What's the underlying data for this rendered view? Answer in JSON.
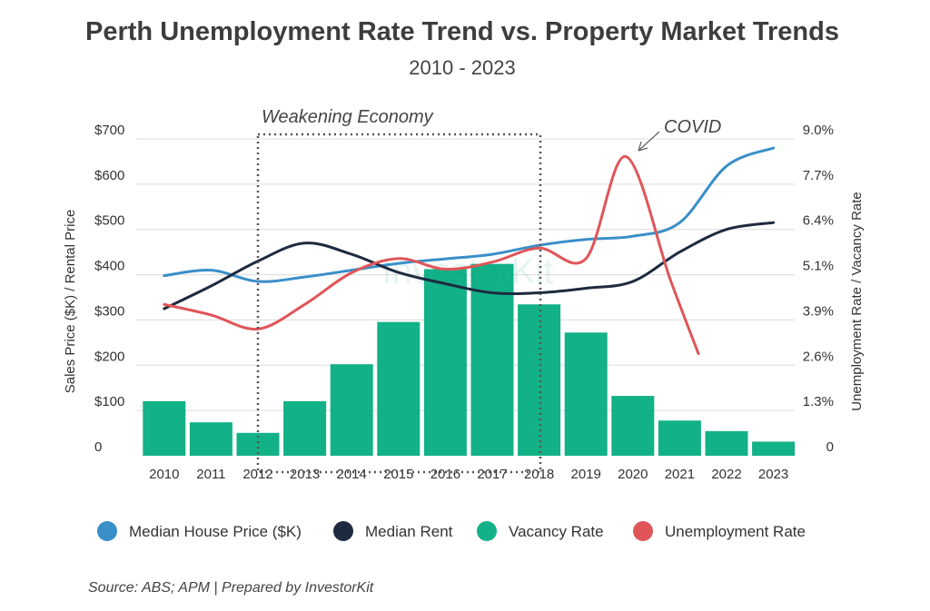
{
  "chart_data": {
    "type": "bar",
    "title": "Perth Unemployment Rate Trend vs. Property Market Trends",
    "subtitle": "2010 - 2023",
    "categories": [
      "2010",
      "2011",
      "2012",
      "2013",
      "2014",
      "2015",
      "2016",
      "2017",
      "2018",
      "2019",
      "2020",
      "2021",
      "2022",
      "2023"
    ],
    "ylabel_left": "Sales Price ($K) / Rental Price",
    "ylabel_right": "Unemployment Rate / Vacancy Rate",
    "ylim_left": [
      0,
      700
    ],
    "ylim_right": [
      0,
      9.0
    ],
    "left_ticks": [
      "0",
      "$100",
      "$200",
      "$300",
      "$400",
      "$500",
      "$600",
      "$700"
    ],
    "right_ticks": [
      "0",
      "1.3%",
      "2.6%",
      "3.9%",
      "5.1%",
      "6.4%",
      "7.7%",
      "9.0%"
    ],
    "series": [
      {
        "name": "Vacancy Rate",
        "kind": "bar",
        "axis": "right",
        "color": "#12b187",
        "values": [
          1.55,
          0.95,
          0.65,
          1.55,
          2.6,
          3.8,
          5.3,
          5.45,
          4.3,
          3.5,
          1.7,
          1.0,
          0.7,
          0.4
        ]
      },
      {
        "name": "Median House Price ($K)",
        "kind": "line",
        "axis": "left",
        "color": "#3a8fc8",
        "values": [
          398,
          410,
          385,
          395,
          410,
          425,
          435,
          445,
          465,
          478,
          485,
          515,
          640,
          680
        ]
      },
      {
        "name": "Median Rent",
        "kind": "line",
        "axis": "left",
        "color": "#1e2a3f",
        "values": [
          325,
          375,
          430,
          470,
          445,
          405,
          380,
          360,
          360,
          370,
          385,
          450,
          500,
          515
        ]
      },
      {
        "name": "Unemployment Rate",
        "kind": "line",
        "axis": "right",
        "color": "#e05558",
        "x": [
          2010,
          2011,
          2012,
          2013,
          2014,
          2015,
          2016,
          2017,
          2018,
          2019,
          2019.85,
          2020.8,
          2021.4
        ],
        "values": [
          4.3,
          4.0,
          3.6,
          4.3,
          5.2,
          5.6,
          5.3,
          5.5,
          5.9,
          5.6,
          8.5,
          5.0,
          2.9
        ]
      }
    ],
    "annotations": [
      {
        "label": "Weakening Economy",
        "from": "2012",
        "to": "2018"
      },
      {
        "label": "COVID",
        "target": "2020"
      }
    ],
    "legend": [
      "Median House Price ($K)",
      "Median Rent",
      "Vacancy Rate",
      "Unemployment Rate"
    ],
    "legend_position": "bottom",
    "grid": true
  },
  "watermark": "InvestorKit",
  "source": "Source: ABS; APM | Prepared by InvestorKit"
}
